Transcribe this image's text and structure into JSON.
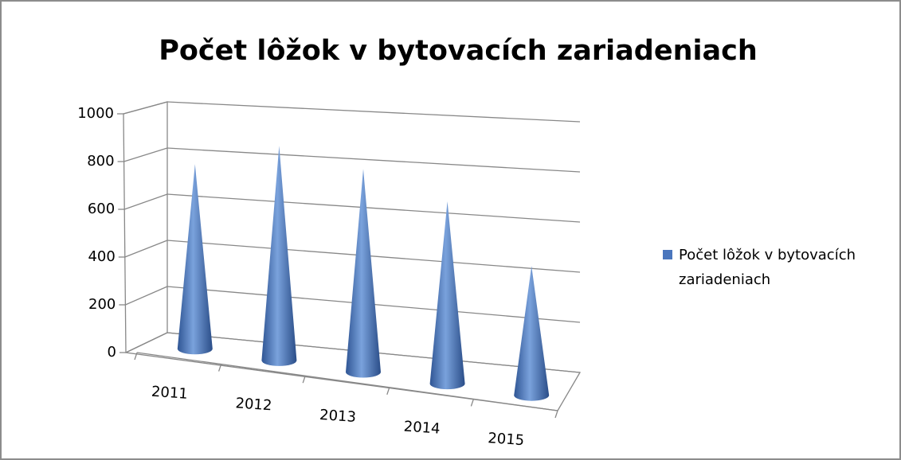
{
  "chart_data": {
    "type": "cone3d",
    "title": "Počet lôžok v bytovacích zariadeniach",
    "categories": [
      "2011",
      "2012",
      "2013",
      "2014",
      "2015"
    ],
    "series": [
      {
        "name": "Počet lôžok v bytovacích zariadeniach",
        "color": "#4a76bd",
        "values": [
          800,
          930,
          880,
          790,
          560
        ]
      }
    ],
    "ylim": [
      0,
      1000
    ],
    "yticks": [
      0,
      200,
      400,
      600,
      800,
      1000
    ],
    "grid": true,
    "legend": "right"
  }
}
